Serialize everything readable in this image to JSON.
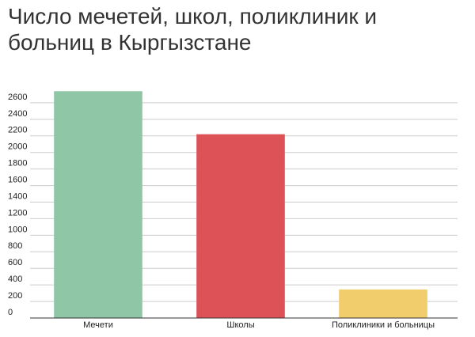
{
  "chart_data": {
    "type": "bar",
    "title": "Число мечетей, школ, поликлиник и больниц в Кыргызстане",
    "categories": [
      "Мечети",
      "Школы",
      "Поликлиники и больницы"
    ],
    "values": [
      2740,
      2220,
      345
    ],
    "colors": [
      "#8ec6a6",
      "#dc5256",
      "#f2cd6b"
    ],
    "ylim": [
      0,
      2800
    ],
    "yticks": [
      0,
      200,
      400,
      600,
      800,
      1000,
      1200,
      1400,
      1600,
      1800,
      2000,
      2200,
      2400,
      2600
    ],
    "grid": true
  }
}
